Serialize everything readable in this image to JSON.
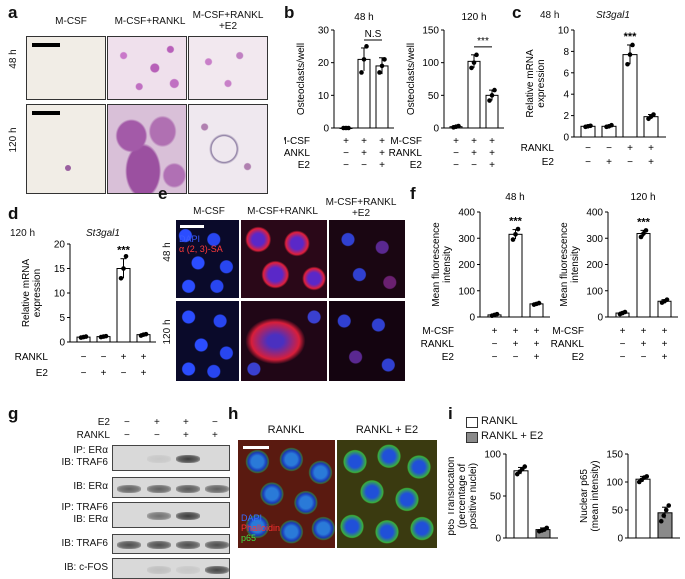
{
  "panels": {
    "a": {
      "label": "a",
      "columns": [
        "M-CSF",
        "M-CSF+RANKL",
        "M-CSF+RANKL\n+E2"
      ],
      "rows": [
        "48 h",
        "120 h"
      ]
    },
    "b": {
      "label": "b",
      "chart_data": [
        {
          "type": "bar",
          "title": "48 h",
          "ylabel": "Osteoclasts/well",
          "ylim": [
            0,
            30
          ],
          "yticks": [
            0,
            10,
            20,
            30
          ],
          "categories": [
            "M-CSF",
            "M-CSF+RANKL",
            "M-CSF+RANKL+E2"
          ],
          "values": [
            0,
            21,
            19
          ],
          "errors": [
            0,
            3.5,
            2.5
          ],
          "points": [
            [
              0,
              0,
              0
            ],
            [
              17,
              21,
              25
            ],
            [
              17,
              19,
              21
            ]
          ],
          "annotation": "N.S"
        },
        {
          "type": "bar",
          "title": "120 h",
          "ylabel": "Osteoclasts/well",
          "ylim": [
            0,
            150
          ],
          "yticks": [
            0,
            50,
            100,
            150
          ],
          "categories": [
            "M-CSF",
            "M-CSF+RANKL",
            "M-CSF+RANKL+E2"
          ],
          "values": [
            2,
            102,
            50
          ],
          "errors": [
            1,
            10,
            8
          ],
          "points": [
            [
              1,
              2,
              3
            ],
            [
              92,
              100,
              112
            ],
            [
              42,
              50,
              58
            ]
          ],
          "annotation": "***"
        }
      ],
      "conditions": [
        {
          "name": "M-CSF",
          "signs": [
            "+",
            "+",
            "+"
          ]
        },
        {
          "name": "RANKL",
          "signs": [
            "−",
            "+",
            "+"
          ]
        },
        {
          "name": "E2",
          "signs": [
            "−",
            "−",
            "+"
          ]
        }
      ]
    },
    "c": {
      "label": "c",
      "time": "48 h",
      "gene": "St3gal1",
      "chart_data": {
        "type": "bar",
        "ylabel": "Relative mRNA expression",
        "ylim": [
          0,
          10
        ],
        "yticks": [
          0,
          2,
          4,
          6,
          8,
          10
        ],
        "categories": [
          "1",
          "2",
          "3",
          "4"
        ],
        "values": [
          1,
          1,
          7.7,
          1.9
        ],
        "errors": [
          0.05,
          0.1,
          0.9,
          0.2
        ],
        "points": [
          [
            0.95,
            1,
            1.05
          ],
          [
            0.95,
            1,
            1.1
          ],
          [
            6.8,
            7.7,
            8.6
          ],
          [
            1.7,
            1.9,
            2.1
          ]
        ],
        "annotation": "***"
      },
      "conditions": [
        {
          "name": "RANKL",
          "signs": [
            "−",
            "−",
            "+",
            "+"
          ]
        },
        {
          "name": "E2",
          "signs": [
            "−",
            "+",
            "−",
            "+"
          ]
        }
      ]
    },
    "d": {
      "label": "d",
      "time": "120 h",
      "gene": "St3gal1",
      "chart_data": {
        "type": "bar",
        "ylabel": "Relative mRNA expression",
        "ylim": [
          0,
          20
        ],
        "yticks": [
          0,
          5,
          10,
          15,
          20
        ],
        "categories": [
          "1",
          "2",
          "3",
          "4"
        ],
        "values": [
          1,
          1.1,
          15,
          1.5
        ],
        "errors": [
          0.1,
          0.1,
          2,
          0.2
        ],
        "points": [
          [
            0.9,
            1,
            1.1
          ],
          [
            1,
            1.1,
            1.2
          ],
          [
            13,
            15,
            17.5
          ],
          [
            1.3,
            1.5,
            1.6
          ]
        ],
        "annotation": "***"
      },
      "conditions": [
        {
          "name": "RANKL",
          "signs": [
            "−",
            "−",
            "+",
            "+"
          ]
        },
        {
          "name": "E2",
          "signs": [
            "−",
            "+",
            "−",
            "+"
          ]
        }
      ]
    },
    "e": {
      "label": "e",
      "columns": [
        "M-CSF",
        "M-CSF+RANKL",
        "M-CSF+RANKL\n+E2"
      ],
      "rows": [
        "48 h",
        "120 h"
      ],
      "stain_dapi": "DAPI",
      "stain_sa": "α (2, 3)-SA"
    },
    "f": {
      "label": "f",
      "chart_data": [
        {
          "type": "bar",
          "title": "48 h",
          "ylabel": "Mean fluorescence intensity",
          "ylim": [
            0,
            400
          ],
          "yticks": [
            0,
            100,
            200,
            300,
            400
          ],
          "categories": [
            "M-CSF",
            "M-CSF+RANKL",
            "M-CSF+RANKL+E2"
          ],
          "values": [
            8,
            315,
            50
          ],
          "errors": [
            3,
            18,
            4
          ],
          "points": [
            [
              5,
              8,
              11
            ],
            [
              295,
              315,
              335
            ],
            [
              47,
              50,
              53
            ]
          ],
          "annotation": "***"
        },
        {
          "type": "bar",
          "title": "120 h",
          "ylabel": "Mean fluorescence intensity",
          "ylim": [
            0,
            400
          ],
          "yticks": [
            0,
            100,
            200,
            300,
            400
          ],
          "categories": [
            "M-CSF",
            "M-CSF+RANKL",
            "M-CSF+RANKL+E2"
          ],
          "values": [
            15,
            318,
            60
          ],
          "errors": [
            4,
            12,
            6
          ],
          "points": [
            [
              11,
              15,
              19
            ],
            [
              305,
              318,
              330
            ],
            [
              55,
              60,
              66
            ]
          ],
          "annotation": "***"
        }
      ],
      "conditions": [
        {
          "name": "M-CSF",
          "signs": [
            "+",
            "+",
            "+"
          ]
        },
        {
          "name": "RANKL",
          "signs": [
            "−",
            "+",
            "+"
          ]
        },
        {
          "name": "E2",
          "signs": [
            "−",
            "−",
            "+"
          ]
        }
      ]
    },
    "g": {
      "label": "g",
      "conditions": [
        {
          "name": "E2",
          "signs": [
            "−",
            "+",
            "+",
            "−"
          ]
        },
        {
          "name": "RANKL",
          "signs": [
            "−",
            "−",
            "+",
            "+"
          ]
        }
      ],
      "blots": [
        {
          "label": "IP: ERα\nIB: TRAF6",
          "intensity": [
            0,
            0.1,
            0.9,
            0
          ]
        },
        {
          "label": "IB: ERα",
          "intensity": [
            0.7,
            0.7,
            0.75,
            0.7
          ]
        },
        {
          "label": "IP: TRAF6\nIB: ERα",
          "intensity": [
            0,
            0.6,
            0.9,
            0
          ]
        },
        {
          "label": "IB: TRAF6",
          "intensity": [
            0.8,
            0.8,
            0.8,
            0.8
          ]
        },
        {
          "label": "IB: c-FOS",
          "intensity": [
            0,
            0.15,
            0.1,
            0.85
          ]
        }
      ]
    },
    "h": {
      "label": "h",
      "columns": [
        "RANKL",
        "RANKL + E2"
      ],
      "stains": [
        "DAPI",
        "Phalloidin",
        "p65"
      ]
    },
    "i": {
      "label": "i",
      "legend": [
        "RANKL",
        "RANKL + E2"
      ],
      "chart_data": [
        {
          "type": "bar",
          "ylabel": "p65 Translocation (percentage of positive nuclei)",
          "ylim": [
            0,
            100
          ],
          "yticks": [
            0,
            50,
            100
          ],
          "categories": [
            "RANKL",
            "RANKL + E2"
          ],
          "values": [
            80,
            10
          ],
          "errors": [
            4,
            2
          ],
          "points": [
            [
              76,
              79,
              82,
              85
            ],
            [
              8,
              9,
              10,
              12
            ]
          ]
        },
        {
          "type": "bar",
          "ylabel": "Nuclear p65 (mean intensity)",
          "ylim": [
            0,
            150
          ],
          "yticks": [
            0,
            50,
            100,
            150
          ],
          "categories": [
            "RANKL",
            "RANKL + E2"
          ],
          "values": [
            105,
            45
          ],
          "errors": [
            5,
            10
          ],
          "points": [
            [
              100,
              104,
              108,
              110
            ],
            [
              30,
              40,
              50,
              58
            ]
          ]
        }
      ]
    }
  },
  "colors": {
    "bar_rankl": "#ffffff",
    "bar_e2": "#8a8a8a",
    "fluor_red": "#e8203a",
    "fluor_blue": "#1a3ad8",
    "fluor_green": "#3fcf3f",
    "stain_purple": "#a05aa8"
  }
}
